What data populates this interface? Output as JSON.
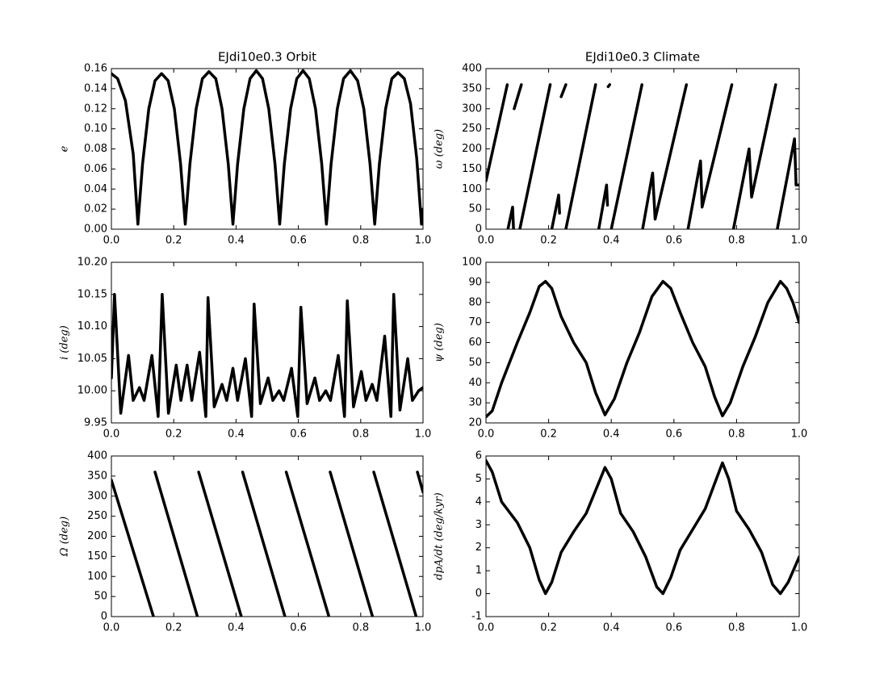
{
  "chart_data": [
    {
      "type": "line",
      "title": "EJdi10e0.3 Orbit",
      "ylabel": "e",
      "color": "#000000",
      "x": [
        0,
        0.02,
        0.045,
        0.07,
        0.085,
        0.1,
        0.12,
        0.14,
        0.161,
        0.182,
        0.202,
        0.222,
        0.237,
        0.252,
        0.272,
        0.292,
        0.313,
        0.335,
        0.355,
        0.375,
        0.39,
        0.405,
        0.425,
        0.445,
        0.465,
        0.485,
        0.505,
        0.525,
        0.54,
        0.555,
        0.575,
        0.595,
        0.615,
        0.635,
        0.655,
        0.675,
        0.69,
        0.705,
        0.725,
        0.745,
        0.767,
        0.79,
        0.81,
        0.83,
        0.845,
        0.86,
        0.88,
        0.9,
        0.92,
        0.94,
        0.96,
        0.98,
        0.995,
        1.0
      ],
      "values": [
        0.155,
        0.15,
        0.128,
        0.075,
        0.005,
        0.065,
        0.12,
        0.148,
        0.155,
        0.148,
        0.12,
        0.065,
        0.005,
        0.065,
        0.12,
        0.15,
        0.157,
        0.15,
        0.12,
        0.065,
        0.005,
        0.065,
        0.12,
        0.15,
        0.158,
        0.15,
        0.12,
        0.065,
        0.005,
        0.065,
        0.12,
        0.15,
        0.158,
        0.15,
        0.12,
        0.065,
        0.005,
        0.065,
        0.12,
        0.15,
        0.158,
        0.148,
        0.12,
        0.065,
        0.005,
        0.065,
        0.12,
        0.15,
        0.156,
        0.15,
        0.125,
        0.07,
        0.005,
        0.02
      ],
      "xlim": [
        0,
        1
      ],
      "ylim": [
        0,
        0.16
      ],
      "xticks": [
        {
          "value": 0,
          "label": "0.0"
        },
        0.2,
        0.4,
        0.6,
        0.8,
        {
          "value": 1,
          "label": "1.0"
        }
      ],
      "yticks": [
        {
          "value": 0,
          "label": "0.00"
        },
        {
          "value": 0.02,
          "label": "0.02"
        },
        {
          "value": 0.04,
          "label": "0.04"
        },
        {
          "value": 0.06,
          "label": "0.06"
        },
        {
          "value": 0.08,
          "label": "0.08"
        },
        {
          "value": 0.1,
          "label": "0.10"
        },
        {
          "value": 0.12,
          "label": "0.12"
        },
        {
          "value": 0.14,
          "label": "0.14"
        },
        {
          "value": 0.16,
          "label": "0.16"
        }
      ]
    },
    {
      "type": "line",
      "title": "EJdi10e0.3 Climate",
      "ylabel": "ω (deg)",
      "color": "#000000",
      "x": [
        0,
        0.068,
        0.069,
        0.07,
        0.085,
        0.088,
        0.089,
        0.09,
        0.113,
        0.11,
        0.108,
        0.205,
        0.207,
        0.21,
        0.232,
        0.235,
        0.237,
        0.24,
        0.255,
        0.255,
        0.255,
        0.35,
        0.355,
        0.36,
        0.385,
        0.388,
        0.389,
        0.39,
        0.395,
        0.397,
        0.4,
        0.498,
        0.499,
        0.5,
        0.532,
        0.54,
        0.64,
        0.642,
        0.645,
        0.685,
        0.69,
        0.785,
        0.787,
        0.79,
        0.84,
        0.848,
        0.925,
        0.927,
        0.93,
        0.985,
        0.99,
        1.0
      ],
      "values": [
        120,
        360,
        null,
        0,
        55,
        0,
        null,
        300,
        360,
        null,
        0,
        360,
        null,
        0,
        85,
        40,
        null,
        330,
        360,
        null,
        0,
        360,
        null,
        0,
        110,
        60,
        null,
        355,
        360,
        null,
        0,
        360,
        null,
        0,
        140,
        25,
        360,
        null,
        0,
        170,
        55,
        360,
        null,
        0,
        200,
        80,
        360,
        null,
        0,
        225,
        110,
        110
      ],
      "xlim": [
        0,
        1
      ],
      "ylim": [
        0,
        400
      ],
      "xticks": [
        {
          "value": 0,
          "label": "0.0"
        },
        0.2,
        0.4,
        0.6,
        0.8,
        {
          "value": 1,
          "label": "1.0"
        }
      ],
      "yticks": [
        0,
        50,
        100,
        150,
        200,
        250,
        300,
        350,
        400
      ]
    },
    {
      "type": "line",
      "ylabel": "i (deg)",
      "color": "#000000",
      "x": [
        0,
        0.01,
        0.03,
        0.055,
        0.07,
        0.09,
        0.105,
        0.13,
        0.15,
        0.163,
        0.183,
        0.208,
        0.223,
        0.243,
        0.258,
        0.283,
        0.303,
        0.31,
        0.33,
        0.355,
        0.37,
        0.39,
        0.405,
        0.43,
        0.45,
        0.458,
        0.478,
        0.503,
        0.518,
        0.538,
        0.553,
        0.578,
        0.598,
        0.608,
        0.628,
        0.653,
        0.668,
        0.688,
        0.703,
        0.728,
        0.748,
        0.757,
        0.777,
        0.802,
        0.817,
        0.837,
        0.852,
        0.877,
        0.897,
        0.906,
        0.926,
        0.951,
        0.966,
        0.986,
        1.0
      ],
      "values": [
        10.02,
        10.15,
        9.965,
        10.055,
        9.985,
        10.005,
        9.985,
        10.055,
        9.96,
        10.15,
        9.965,
        10.04,
        9.985,
        10.04,
        9.985,
        10.06,
        9.96,
        10.145,
        9.975,
        10.01,
        9.985,
        10.035,
        9.985,
        10.05,
        9.96,
        10.135,
        9.98,
        10.02,
        9.985,
        10.0,
        9.985,
        10.035,
        9.96,
        10.13,
        9.98,
        10.02,
        9.985,
        10.0,
        9.985,
        10.055,
        9.96,
        10.14,
        9.975,
        10.03,
        9.985,
        10.01,
        9.985,
        10.085,
        9.96,
        10.15,
        9.97,
        10.05,
        9.985,
        10.0,
        10.005
      ],
      "xlim": [
        0,
        1
      ],
      "ylim": [
        9.95,
        10.2
      ],
      "xticks": [
        {
          "value": 0,
          "label": "0.0"
        },
        0.2,
        0.4,
        0.6,
        0.8,
        {
          "value": 1,
          "label": "1.0"
        }
      ],
      "yticks": [
        9.95,
        {
          "value": 10,
          "label": "10.00"
        },
        10.05,
        {
          "value": 10.1,
          "label": "10.10"
        },
        10.15,
        {
          "value": 10.2,
          "label": "10.20"
        }
      ]
    },
    {
      "type": "line",
      "ylabel": "ψ (deg)",
      "color": "#000000",
      "x": [
        0,
        0.02,
        0.05,
        0.1,
        0.14,
        0.17,
        0.19,
        0.21,
        0.24,
        0.28,
        0.32,
        0.35,
        0.38,
        0.41,
        0.45,
        0.49,
        0.53,
        0.565,
        0.59,
        0.62,
        0.66,
        0.7,
        0.73,
        0.755,
        0.78,
        0.82,
        0.86,
        0.9,
        0.94,
        0.96,
        0.98,
        1.0
      ],
      "values": [
        23,
        26,
        40,
        60,
        75,
        88,
        90.5,
        87,
        73,
        60,
        50,
        35,
        24,
        32,
        50,
        65,
        83,
        90.5,
        87,
        75,
        60,
        48,
        33,
        23.5,
        30,
        48,
        63,
        80,
        90.5,
        87,
        80,
        70
      ],
      "xlim": [
        0,
        1
      ],
      "ylim": [
        20,
        100
      ],
      "xticks": [
        {
          "value": 0,
          "label": "0.0"
        },
        0.2,
        0.4,
        0.6,
        0.8,
        {
          "value": 1,
          "label": "1.0"
        }
      ],
      "yticks": [
        20,
        30,
        40,
        50,
        60,
        70,
        80,
        90,
        100
      ]
    },
    {
      "type": "line",
      "ylabel": "Ω (deg)",
      "color": "#000000",
      "x": [
        0,
        0.135,
        0.137,
        0.14,
        0.276,
        0.278,
        0.28,
        0.417,
        0.419,
        0.421,
        0.557,
        0.559,
        0.561,
        0.698,
        0.7,
        0.702,
        0.838,
        0.84,
        0.842,
        0.978,
        0.98,
        0.982,
        1.0
      ],
      "values": [
        340,
        0,
        null,
        360,
        0,
        null,
        360,
        0,
        null,
        360,
        0,
        null,
        360,
        0,
        null,
        360,
        0,
        null,
        360,
        0,
        null,
        360,
        310
      ],
      "xlim": [
        0,
        1
      ],
      "ylim": [
        0,
        400
      ],
      "xticks": [
        {
          "value": 0,
          "label": "0.0"
        },
        0.2,
        0.4,
        0.6,
        0.8,
        {
          "value": 1,
          "label": "1.0"
        }
      ],
      "yticks": [
        0,
        50,
        100,
        150,
        200,
        250,
        300,
        350,
        400
      ]
    },
    {
      "type": "line",
      "ylabel": "dpA/dt (deg/kyr)",
      "color": "#000000",
      "x": [
        0,
        0.02,
        0.05,
        0.1,
        0.14,
        0.17,
        0.19,
        0.21,
        0.24,
        0.28,
        0.32,
        0.35,
        0.38,
        0.4,
        0.43,
        0.47,
        0.51,
        0.545,
        0.565,
        0.59,
        0.62,
        0.66,
        0.7,
        0.73,
        0.755,
        0.775,
        0.8,
        0.84,
        0.88,
        0.915,
        0.94,
        0.965,
        1.0
      ],
      "values": [
        5.8,
        5.3,
        4.0,
        3.1,
        2.0,
        0.6,
        0,
        0.5,
        1.8,
        2.7,
        3.5,
        4.5,
        5.5,
        5.0,
        3.5,
        2.7,
        1.6,
        0.3,
        0,
        0.7,
        1.9,
        2.8,
        3.7,
        4.8,
        5.7,
        5.0,
        3.6,
        2.8,
        1.8,
        0.4,
        0,
        0.5,
        1.6
      ],
      "xlim": [
        0,
        1
      ],
      "ylim": [
        -1,
        6
      ],
      "xticks": [
        {
          "value": 0,
          "label": "0.0"
        },
        0.2,
        0.4,
        0.6,
        0.8,
        {
          "value": 1,
          "label": "1.0"
        }
      ],
      "yticks": [
        -1,
        0,
        1,
        2,
        3,
        4,
        5,
        6
      ]
    }
  ]
}
